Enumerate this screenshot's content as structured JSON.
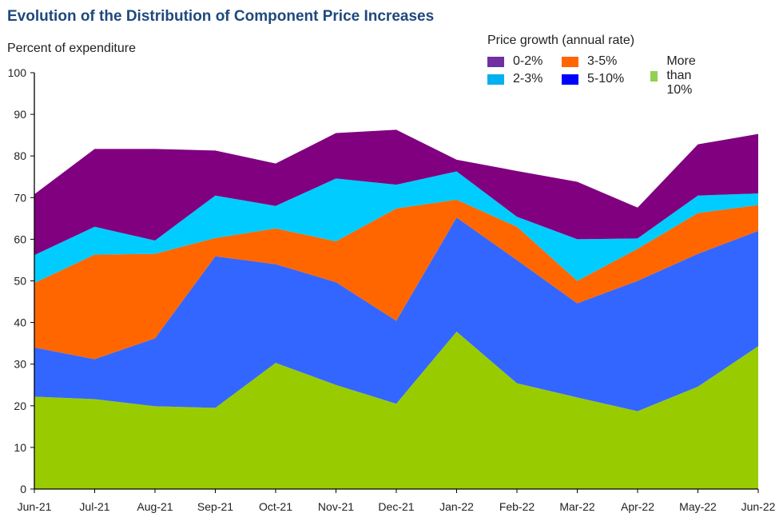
{
  "chart_data": {
    "type": "area",
    "stacked": true,
    "title": "Evolution of the Distribution of Component Price Increases",
    "ylabel": "Percent of expenditure",
    "xlabel": "",
    "ylim": [
      0,
      100
    ],
    "yticks": [
      0,
      10,
      20,
      30,
      40,
      50,
      60,
      70,
      80,
      90,
      100
    ],
    "grid": false,
    "legend_title": "Price growth (annual rate)",
    "legend_placement": "top-right",
    "categories": [
      "Jun-21",
      "Jul-21",
      "Aug-21",
      "Sep-21",
      "Oct-21",
      "Nov-21",
      "Dec-21",
      "Jan-22",
      "Feb-22",
      "Mar-22",
      "Apr-22",
      "May-22",
      "Jun-22"
    ],
    "series": [
      {
        "name": "More than 10%",
        "color": "#99CC00",
        "legend_color": "#92D050",
        "values": [
          22.2,
          21.6,
          19.9,
          19.5,
          30.3,
          25.0,
          20.5,
          37.8,
          25.4,
          22.0,
          18.7,
          24.6,
          34.3
        ]
      },
      {
        "name": "5-10%",
        "color": "#3366FF",
        "legend_color": "#0000FF",
        "values": [
          11.8,
          9.6,
          16.3,
          36.4,
          23.7,
          24.7,
          19.9,
          27.4,
          29.6,
          22.6,
          31.3,
          31.9,
          27.7
        ]
      },
      {
        "name": "3-5%",
        "color": "#FF6600",
        "legend_color": "#FF6600",
        "values": [
          15.5,
          25.1,
          20.3,
          4.4,
          8.6,
          9.8,
          27.0,
          4.3,
          8.0,
          5.4,
          7.7,
          9.8,
          6.2
        ]
      },
      {
        "name": "2-3%",
        "color": "#00CCFF",
        "legend_color": "#00B0F0",
        "values": [
          6.7,
          6.7,
          3.2,
          10.2,
          5.4,
          15.1,
          5.7,
          6.8,
          2.4,
          10.0,
          2.5,
          4.2,
          2.8
        ]
      },
      {
        "name": "0-2%",
        "color": "#800080",
        "legend_color": "#7030A0",
        "values": [
          14.6,
          18.7,
          22.0,
          10.8,
          10.2,
          10.9,
          13.2,
          2.8,
          11.0,
          13.8,
          7.4,
          12.3,
          14.3
        ]
      }
    ]
  }
}
